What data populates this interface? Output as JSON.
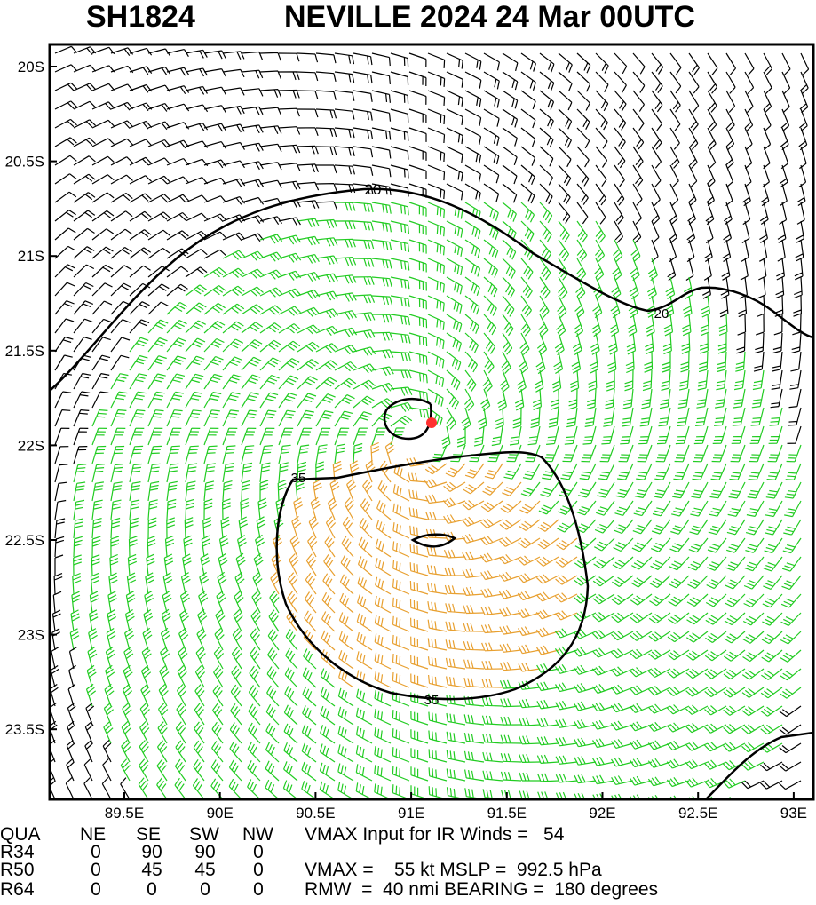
{
  "header": {
    "storm_id": "SH1824",
    "title": "NEVILLE 2024 24 Mar 00UTC"
  },
  "axes": {
    "lon_labels": [
      "89.5E",
      "90E",
      "90.5E",
      "91E",
      "91.5E",
      "92E",
      "92.5E",
      "93E"
    ],
    "lat_labels": [
      "20S",
      "20.5S",
      "21S",
      "21.5S",
      "22S",
      "22.5S",
      "23S",
      "23.5S"
    ]
  },
  "contours": {
    "labels": [
      "20",
      "20",
      "35",
      "35"
    ]
  },
  "table": {
    "header": [
      "QUA",
      "NE",
      "SE",
      "SW",
      "NW"
    ],
    "rows": [
      [
        "R34",
        "0",
        "90",
        "90",
        "0"
      ],
      [
        "R50",
        "0",
        "45",
        "45",
        "0"
      ],
      [
        "R64",
        "0",
        "0",
        "0",
        "0"
      ]
    ],
    "notes": [
      "VMAX Input for IR Winds =   54",
      "",
      "VMAX =    55 kt MSLP =  992.5 hPa",
      "RMW  =  40 nmi BEARING =  180 degrees"
    ]
  }
}
